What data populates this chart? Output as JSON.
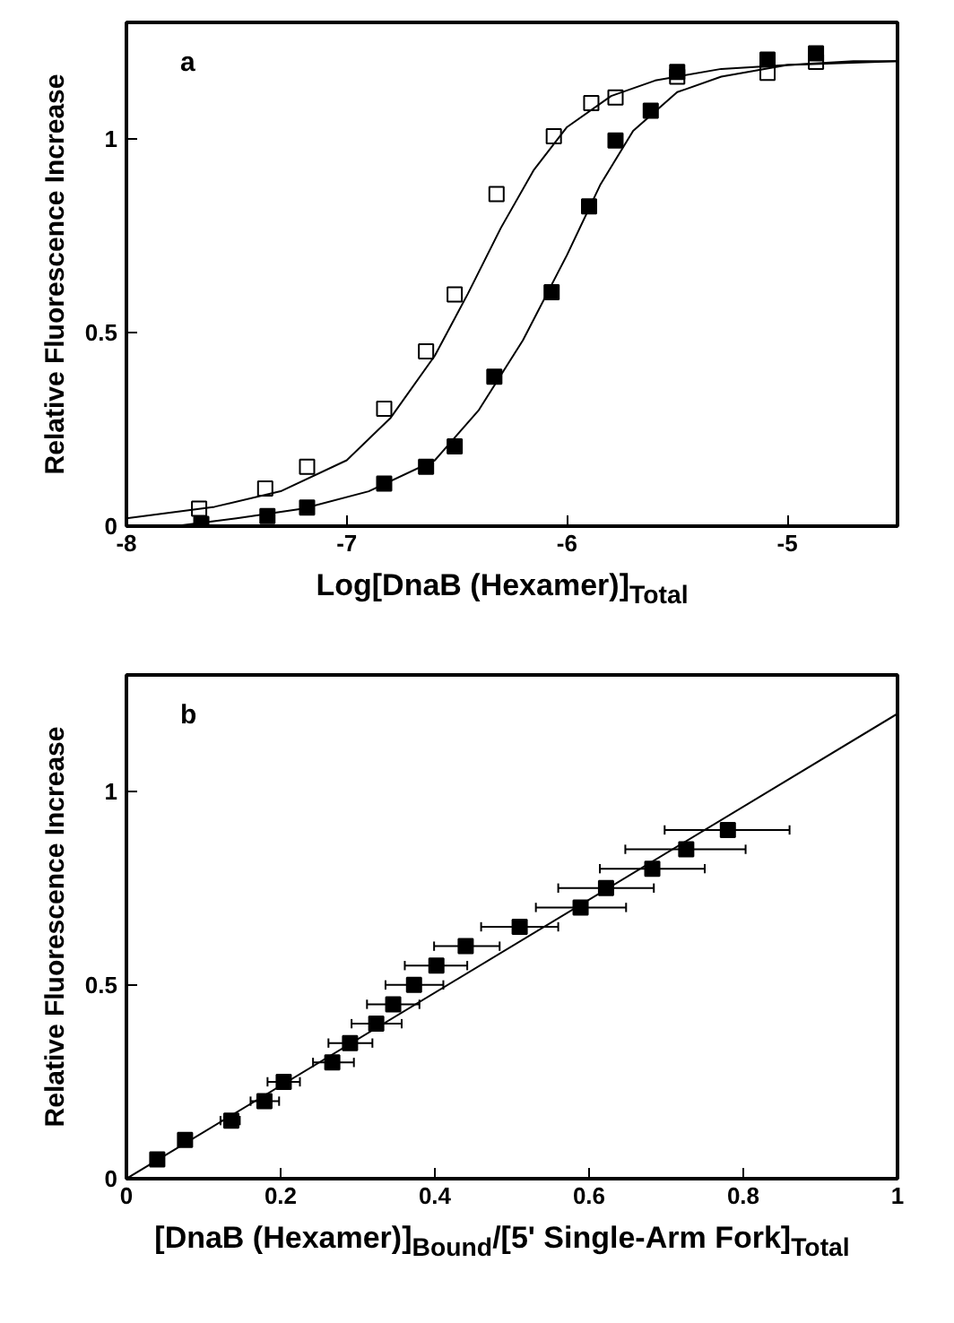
{
  "chart_data": [
    {
      "type": "scatter",
      "xlabel": "Log[DnaB (Hexamer)]$_{Total}$",
      "ylabel": "Relative Fluorescence Increase",
      "annotations": [
        "a"
      ],
      "xlim": [
        -8,
        -4.5
      ],
      "ylim": [
        0,
        1.3
      ],
      "xticks": [
        -8,
        -7,
        -6,
        -5
      ],
      "yticks": [
        0,
        0.5,
        1
      ],
      "marker": "square",
      "series": [
        {
          "color": "#ffffff",
          "x": [
            -7.67,
            -7.37,
            -7.18,
            -6.83,
            -6.64,
            -6.51,
            -6.32,
            -6.06,
            -5.89,
            -5.78,
            -5.5,
            -5.09,
            -4.87
          ],
          "values": [
            0.045,
            0.097,
            0.153,
            0.303,
            0.451,
            0.598,
            0.857,
            1.006,
            1.092,
            1.106,
            1.16,
            1.17,
            1.198
          ]
        },
        {
          "color": "#000000",
          "x": [
            -7.66,
            -7.36,
            -7.18,
            -6.83,
            -6.64,
            -6.51,
            -6.33,
            -6.07,
            -5.9,
            -5.78,
            -5.62,
            -5.5,
            -5.09,
            -4.87
          ],
          "values": [
            0.006,
            0.026,
            0.048,
            0.11,
            0.153,
            0.206,
            0.386,
            0.604,
            0.825,
            0.995,
            1.072,
            1.172,
            1.204,
            1.22
          ]
        },
        {
          "type": "line",
          "color": "#000000",
          "marker": "none",
          "x": [
            -8,
            -7.6,
            -7.3,
            -7.0,
            -6.8,
            -6.6,
            -6.45,
            -6.3,
            -6.15,
            -6.0,
            -5.8,
            -5.6,
            -5.3,
            -5.0,
            -4.5
          ],
          "values": [
            0.02,
            0.05,
            0.09,
            0.17,
            0.28,
            0.44,
            0.6,
            0.77,
            0.92,
            1.03,
            1.11,
            1.15,
            1.18,
            1.19,
            1.2
          ]
        },
        {
          "type": "line",
          "color": "#000000",
          "marker": "none",
          "x": [
            -7.78,
            -7.5,
            -7.2,
            -6.9,
            -6.6,
            -6.4,
            -6.2,
            -6.0,
            -5.85,
            -5.7,
            -5.5,
            -5.3,
            -5.0,
            -4.7,
            -4.5
          ],
          "values": [
            0.0,
            0.02,
            0.045,
            0.09,
            0.17,
            0.3,
            0.48,
            0.7,
            0.88,
            1.02,
            1.12,
            1.16,
            1.19,
            1.2,
            1.2
          ]
        }
      ]
    },
    {
      "type": "scatter",
      "xlabel": "[DnaB (Hexamer)]$_{Bound}$/[5' Single-Arm Fork]$_{Total}$",
      "ylabel": "Relative Fluorescence Increase",
      "annotations": [
        "b"
      ],
      "xlim": [
        0,
        1
      ],
      "ylim": [
        0,
        1.3
      ],
      "xticks": [
        0,
        0.2,
        0.4,
        0.6,
        0.8,
        1
      ],
      "yticks": [
        0,
        0.5,
        1
      ],
      "marker": "square",
      "series": [
        {
          "color": "#000000",
          "x": [
            0.04,
            0.076,
            0.136,
            0.179,
            0.204,
            0.267,
            0.29,
            0.324,
            0.346,
            0.373,
            0.402,
            0.44,
            0.51,
            0.589,
            0.622,
            0.682,
            0.726,
            0.78
          ],
          "values": [
            0.05,
            0.1,
            0.15,
            0.2,
            0.25,
            0.3,
            0.35,
            0.4,
            0.45,
            0.5,
            0.55,
            0.6,
            0.65,
            0.7,
            0.75,
            0.8,
            0.85,
            0.9
          ],
          "xerrors": [
            null,
            null,
            [
              0.122,
              0.147
            ],
            [
              0.161,
              0.198
            ],
            [
              0.183,
              0.225
            ],
            [
              0.242,
              0.295
            ],
            [
              0.262,
              0.319
            ],
            [
              0.292,
              0.357
            ],
            [
              0.312,
              0.38
            ],
            [
              0.336,
              0.411
            ],
            [
              0.361,
              0.442
            ],
            [
              0.399,
              0.484
            ],
            [
              0.46,
              0.56
            ],
            [
              0.531,
              0.648
            ],
            [
              0.56,
              0.684
            ],
            [
              0.614,
              0.75
            ],
            [
              0.647,
              0.803
            ],
            [
              0.698,
              0.86
            ]
          ]
        },
        {
          "type": "line",
          "color": "#000000",
          "marker": "none",
          "x": [
            0,
            1
          ],
          "values": [
            0,
            1.2
          ]
        }
      ]
    }
  ]
}
